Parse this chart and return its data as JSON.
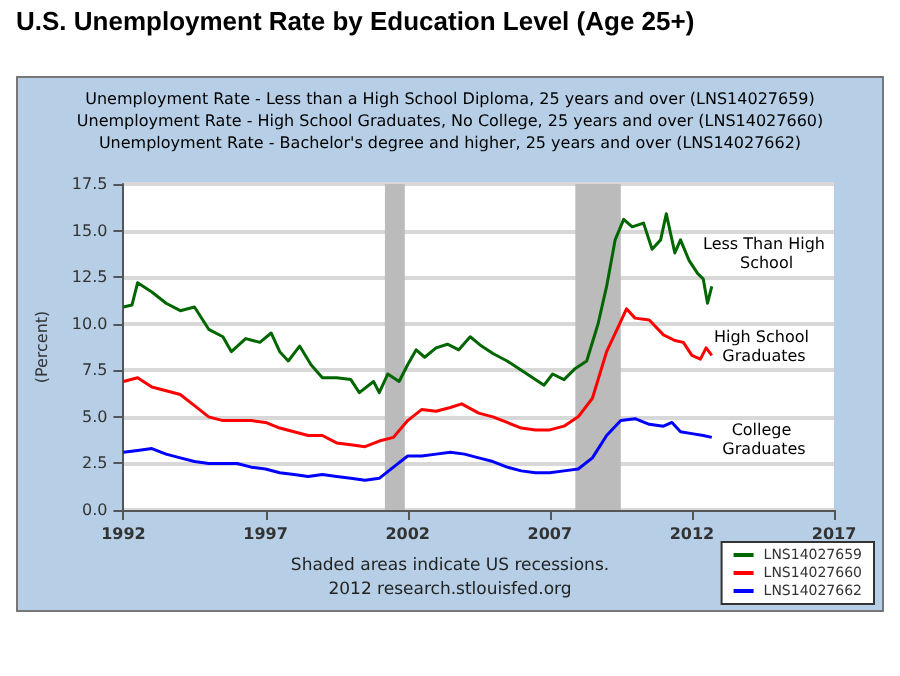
{
  "chart_data": {
    "type": "line",
    "title": "U.S. Unemployment Rate by Education Level (Age 25+)",
    "subtitle": "Unemployment Rate - Less than a High School Diploma, 25 years and over (LNS14027659)\nUnemployment Rate - High School Graduates, No College, 25 years and over (LNS14027660)\nUnemployment Rate - Bachelor's degree and higher, 25 years and over (LNS14027662)",
    "ylabel": "(Percent)",
    "xlim": [
      1992,
      2017
    ],
    "xticks": [
      1992,
      1997,
      2002,
      2007,
      2012,
      2017
    ],
    "ylim": [
      0,
      17.5
    ],
    "yticks": [
      {
        "value": 0,
        "label": "0.0"
      },
      2.5,
      {
        "value": 5,
        "label": "5.0"
      },
      7.5,
      {
        "value": 10,
        "label": "10.0"
      },
      12.5,
      {
        "value": 15,
        "label": "15.0"
      },
      17.5
    ],
    "grid": "y",
    "legend": "bottom right",
    "marker": "none",
    "line_style": "solid",
    "bands": [
      {
        "axis": "x",
        "from": 2001.2,
        "to": 2001.9,
        "color": "#bbbbbb"
      },
      {
        "axis": "x",
        "from": 2007.9,
        "to": 2009.5,
        "color": "#bbbbbb"
      }
    ],
    "annotations": [
      "Less Than High School",
      "High School Graduates",
      "College Graduates",
      "Shaded areas indicate US recessions.",
      "2012 research.stlouisfed.org"
    ],
    "series": [
      {
        "name": "LNS14027659",
        "color": "#006600",
        "x": [
          1992,
          1992.3,
          1992.5,
          1993,
          1993.5,
          1994,
          1994.5,
          1995,
          1995.5,
          1995.8,
          1996.3,
          1996.8,
          1997.2,
          1997.5,
          1997.8,
          1998.2,
          1998.6,
          1999,
          1999.5,
          2000,
          2000.3,
          2000.8,
          2001,
          2001.3,
          2001.7,
          2002,
          2002.3,
          2002.6,
          2003,
          2003.4,
          2003.8,
          2004.2,
          2004.6,
          2005,
          2005.5,
          2006,
          2006.4,
          2006.8,
          2007.1,
          2007.5,
          2007.9,
          2008.3,
          2008.7,
          2009,
          2009.3,
          2009.6,
          2009.9,
          2010.3,
          2010.6,
          2010.9,
          2011.1,
          2011.4,
          2011.6,
          2011.9,
          2012.2,
          2012.4,
          2012.55,
          2012.7
        ],
        "values": [
          10.9,
          11,
          12.2,
          11.7,
          11.1,
          10.7,
          10.9,
          9.7,
          9.3,
          8.5,
          9.2,
          9,
          9.5,
          8.5,
          8,
          8.8,
          7.8,
          7.1,
          7.1,
          7,
          6.3,
          6.9,
          6.3,
          7.3,
          6.9,
          7.8,
          8.6,
          8.2,
          8.7,
          8.9,
          8.6,
          9.3,
          8.8,
          8.4,
          8,
          7.5,
          7.1,
          6.7,
          7.3,
          7,
          7.6,
          8,
          10,
          12,
          14.5,
          15.6,
          15.2,
          15.4,
          14,
          14.5,
          15.9,
          13.8,
          14.5,
          13.4,
          12.7,
          12.4,
          11.1,
          12
        ]
      },
      {
        "name": "LNS14027660",
        "color": "#ff0000",
        "x": [
          1992,
          1992.5,
          1993,
          1993.5,
          1994,
          1994.5,
          1995,
          1995.5,
          1996,
          1996.5,
          1997,
          1997.5,
          1998,
          1998.5,
          1999,
          1999.5,
          2000,
          2000.5,
          2001,
          2001.5,
          2002,
          2002.5,
          2003,
          2003.5,
          2003.9,
          2004.5,
          2005,
          2005.5,
          2006,
          2006.5,
          2007,
          2007.5,
          2008,
          2008.5,
          2009,
          2009.4,
          2009.7,
          2010,
          2010.5,
          2011,
          2011.4,
          2011.7,
          2012,
          2012.3,
          2012.5,
          2012.7
        ],
        "values": [
          6.9,
          7.1,
          6.6,
          6.4,
          6.2,
          5.6,
          5,
          4.8,
          4.8,
          4.8,
          4.7,
          4.4,
          4.2,
          4,
          4,
          3.6,
          3.5,
          3.4,
          3.7,
          3.9,
          4.8,
          5.4,
          5.3,
          5.5,
          5.7,
          5.2,
          5,
          4.7,
          4.4,
          4.3,
          4.3,
          4.5,
          5,
          6,
          8.5,
          9.8,
          10.8,
          10.3,
          10.2,
          9.4,
          9.1,
          9,
          8.3,
          8.1,
          8.7,
          8.3
        ]
      },
      {
        "name": "LNS14027662",
        "color": "#0000ff",
        "x": [
          1992,
          1992.5,
          1993,
          1993.5,
          1994,
          1994.5,
          1995,
          1995.5,
          1996,
          1996.5,
          1997,
          1997.5,
          1998,
          1998.5,
          1999,
          1999.5,
          2000,
          2000.5,
          2001,
          2001.5,
          2002,
          2002.5,
          2003,
          2003.5,
          2004,
          2004.5,
          2005,
          2005.5,
          2006,
          2006.5,
          2007,
          2007.5,
          2008,
          2008.5,
          2009,
          2009.5,
          2010,
          2010.5,
          2011,
          2011.3,
          2011.6,
          2012,
          2012.4,
          2012.7
        ],
        "values": [
          3.1,
          3.2,
          3.3,
          3,
          2.8,
          2.6,
          2.5,
          2.5,
          2.5,
          2.3,
          2.2,
          2,
          1.9,
          1.8,
          1.9,
          1.8,
          1.7,
          1.6,
          1.7,
          2.3,
          2.9,
          2.9,
          3,
          3.1,
          3,
          2.8,
          2.6,
          2.3,
          2.1,
          2,
          2,
          2.1,
          2.2,
          2.8,
          4,
          4.8,
          4.9,
          4.6,
          4.5,
          4.7,
          4.2,
          4.1,
          4,
          3.9
        ]
      }
    ]
  }
}
